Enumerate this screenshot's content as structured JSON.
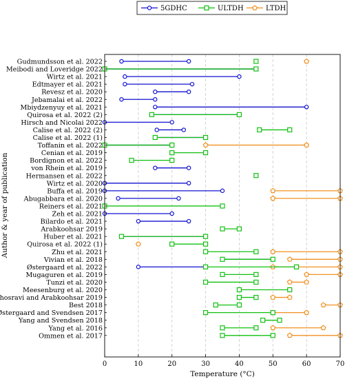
{
  "chart_data": {
    "type": "range-line",
    "xlabel": "Temperature (°C)",
    "ylabel": "Author & year of publication",
    "xlim": [
      0,
      70
    ],
    "xticks": [
      0,
      10,
      20,
      30,
      40,
      50,
      60,
      70
    ],
    "grid": "vertical dashed",
    "legend_position": "top",
    "series": [
      {
        "name": "5GDHC",
        "color": "#1010d0",
        "marker": "circle"
      },
      {
        "name": "ULTDH",
        "color": "#10c010",
        "marker": "square"
      },
      {
        "name": "LTDH",
        "color": "#f09020",
        "marker": "pentagon"
      }
    ],
    "categories": [
      "Gudmundsson et al. 2022",
      "Meibodi and Loveridge 2022",
      "Wirtz et al. 2021",
      "Edtmayer et al. 2021",
      "Revesz et al. 2020",
      "Jebamalai et al. 2022",
      "Mbiydzenyuy et al. 2021",
      "Quirosa et al. 2022 (2)",
      "Hirsch and Nicolai 2022",
      "Calise et al. 2022 (2)",
      "Calise et al. 2022 (1)",
      "Toffanin et al. 2022",
      "Cenian et al. 2019",
      "Bordignon et al. 2022",
      "von Rhein et al. 2019",
      "Hermansen et al. 2022",
      "Wirtz et al. 2020",
      "Buffa et al. 2019",
      "Abugabbara et al. 2020",
      "Reiners et al. 2021",
      "Zeh et al. 2021",
      "Bilardo et al. 2021",
      "Arabkoohsar 2019",
      "Huber et al. 2021",
      "Quirosa et al. 2022 (1)",
      "Zhu et al. 2021",
      "Vivian et al. 2018",
      "Østergaard et al. 2022",
      "Mugaguren et al. 2019",
      "Tunzi et al. 2020",
      "Meesenburg et al. 2020",
      "Khosravi and Arabkoohsar 2019",
      "Best 2018",
      "Østergaard and Svendsen 2017",
      "Yang and Svendsen 2018",
      "Yang et al. 2016",
      "Ommen et al. 2017"
    ],
    "ranges": [
      {
        "row": 0,
        "series": "5GDHC",
        "low": 5,
        "high": 25
      },
      {
        "row": 0,
        "series": "ULTDH",
        "low": 45,
        "high": 45
      },
      {
        "row": 0,
        "series": "LTDH",
        "low": 60,
        "high": 60
      },
      {
        "row": 1,
        "series": "5GDHC",
        "low": 0,
        "high": 45
      },
      {
        "row": 1,
        "series": "ULTDH",
        "low": 0,
        "high": 45
      },
      {
        "row": 2,
        "series": "5GDHC",
        "low": 6,
        "high": 40
      },
      {
        "row": 3,
        "series": "5GDHC",
        "low": 6,
        "high": 26
      },
      {
        "row": 4,
        "series": "5GDHC",
        "low": 15,
        "high": 25
      },
      {
        "row": 5,
        "series": "5GDHC",
        "low": 5,
        "high": 15
      },
      {
        "row": 6,
        "series": "5GDHC",
        "low": 15,
        "high": 60
      },
      {
        "row": 7,
        "series": "5GDHC",
        "low": 14,
        "high": 40
      },
      {
        "row": 7,
        "series": "ULTDH",
        "low": 14,
        "high": 40
      },
      {
        "row": 8,
        "series": "5GDHC",
        "low": 0,
        "high": 20
      },
      {
        "row": 9,
        "series": "5GDHC",
        "low": 15.5,
        "high": 23.5
      },
      {
        "row": 9,
        "series": "ULTDH",
        "low": 46,
        "high": 55
      },
      {
        "row": 10,
        "series": "5GDHC",
        "low": 15,
        "high": 30
      },
      {
        "row": 10,
        "series": "ULTDH",
        "low": 15,
        "high": 30
      },
      {
        "row": 11,
        "series": "5GDHC",
        "low": 0,
        "high": 20
      },
      {
        "row": 11,
        "series": "ULTDH",
        "low": 0,
        "high": 20
      },
      {
        "row": 11,
        "series": "LTDH",
        "low": 30,
        "high": 60
      },
      {
        "row": 12,
        "series": "ULTDH",
        "low": 20,
        "high": 30
      },
      {
        "row": 13,
        "series": "ULTDH",
        "low": 8,
        "high": 20
      },
      {
        "row": 14,
        "series": "5GDHC",
        "low": 15,
        "high": 25
      },
      {
        "row": 15,
        "series": "ULTDH",
        "low": 45,
        "high": 45
      },
      {
        "row": 16,
        "series": "5GDHC",
        "low": 0,
        "high": 25
      },
      {
        "row": 17,
        "series": "5GDHC",
        "low": 0,
        "high": 35
      },
      {
        "row": 17,
        "series": "LTDH",
        "low": 50,
        "high": 70
      },
      {
        "row": 18,
        "series": "5GDHC",
        "low": 4,
        "high": 22
      },
      {
        "row": 18,
        "series": "LTDH",
        "low": 50,
        "high": 70
      },
      {
        "row": 19,
        "series": "ULTDH",
        "low": 0,
        "high": 35
      },
      {
        "row": 20,
        "series": "5GDHC",
        "low": 0,
        "high": 20
      },
      {
        "row": 21,
        "series": "5GDHC",
        "low": 10,
        "high": 25
      },
      {
        "row": 22,
        "series": "ULTDH",
        "low": 35,
        "high": 40
      },
      {
        "row": 23,
        "series": "5GDHC",
        "low": 5,
        "high": 30
      },
      {
        "row": 23,
        "series": "ULTDH",
        "low": 5,
        "high": 30
      },
      {
        "row": 24,
        "series": "ULTDH",
        "low": 20,
        "high": 30
      },
      {
        "row": 24,
        "series": "LTDH",
        "low": 10,
        "high": 10
      },
      {
        "row": 25,
        "series": "ULTDH",
        "low": 30,
        "high": 45
      },
      {
        "row": 25,
        "series": "LTDH",
        "low": 50,
        "high": 70
      },
      {
        "row": 26,
        "series": "5GDHC",
        "low": 35,
        "high": 50
      },
      {
        "row": 26,
        "series": "ULTDH",
        "low": 35,
        "high": 50
      },
      {
        "row": 26,
        "series": "LTDH",
        "low": 55,
        "high": 70
      },
      {
        "row": 27,
        "series": "5GDHC",
        "low": 10,
        "high": 30
      },
      {
        "row": 27,
        "series": "ULTDH",
        "low": 30,
        "high": 57
      },
      {
        "row": 27,
        "series": "LTDH",
        "low": 50,
        "high": 70
      },
      {
        "row": 28,
        "series": "ULTDH",
        "low": 35,
        "high": 45
      },
      {
        "row": 28,
        "series": "LTDH",
        "low": 60,
        "high": 70
      },
      {
        "row": 29,
        "series": "ULTDH",
        "low": 30,
        "high": 45
      },
      {
        "row": 29,
        "series": "LTDH",
        "low": 55,
        "high": 60
      },
      {
        "row": 30,
        "series": "ULTDH",
        "low": 40,
        "high": 55
      },
      {
        "row": 30,
        "series": "LTDH",
        "low": 55,
        "high": 55
      },
      {
        "row": 31,
        "series": "ULTDH",
        "low": 40,
        "high": 45
      },
      {
        "row": 31,
        "series": "LTDH",
        "low": 50,
        "high": 55
      },
      {
        "row": 32,
        "series": "ULTDH",
        "low": 33,
        "high": 40
      },
      {
        "row": 32,
        "series": "LTDH",
        "low": 65,
        "high": 70
      },
      {
        "row": 33,
        "series": "ULTDH",
        "low": 30,
        "high": 50
      },
      {
        "row": 33,
        "series": "LTDH",
        "low": 50,
        "high": 60
      },
      {
        "row": 34,
        "series": "ULTDH",
        "low": 47,
        "high": 52
      },
      {
        "row": 35,
        "series": "ULTDH",
        "low": 35,
        "high": 45
      },
      {
        "row": 35,
        "series": "LTDH",
        "low": 50,
        "high": 65
      },
      {
        "row": 36,
        "series": "ULTDH",
        "low": 35,
        "high": 50
      },
      {
        "row": 36,
        "series": "LTDH",
        "low": 55,
        "high": 70
      }
    ]
  }
}
